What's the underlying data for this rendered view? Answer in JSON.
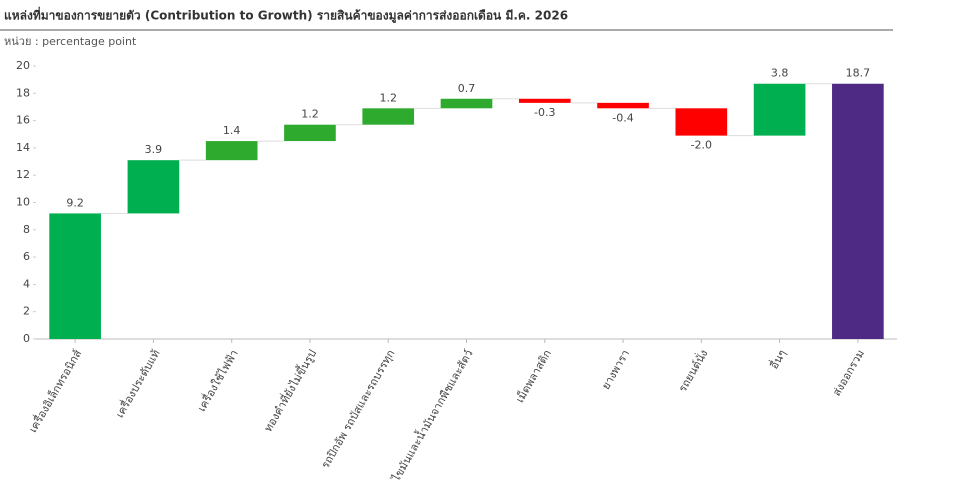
{
  "chart_data": {
    "type": "waterfall",
    "title": "แหล่งที่มาของการขยายตัว (Contribution to Growth) รายสินค้าของมูลค่าการส่งออกเดือน มี.ค. 2026",
    "subtitle": "หน่วย : percentage point",
    "categories": [
      "เครื่องอิเล็กทรอนิกส์",
      "เครื่องประดับแท้",
      "เครื่องใช้ไฟฟ้า",
      "ทองคำที่ยังไม่ขึ้นรูป",
      "รถปิกอัพ รถบัสและรถบรรทุก",
      "ไขมันและน้ำมันจากพืชและสัตว์",
      "เม็ดพลาสติก",
      "ยางพารา",
      "รถยนต์นั่ง",
      "อื่นๆ",
      "ส่งออกรวม"
    ],
    "values": [
      9.2,
      3.9,
      1.4,
      1.2,
      1.2,
      0.7,
      -0.3,
      -0.4,
      -2.0,
      3.8,
      18.7
    ],
    "value_labels": [
      "9.2",
      "3.9",
      "1.4",
      "1.2",
      "1.2",
      "0.7",
      "-0.3",
      "-0.4",
      "-2.0",
      "3.8",
      "18.7"
    ],
    "measure": [
      "relative",
      "relative",
      "relative",
      "relative",
      "relative",
      "relative",
      "relative",
      "relative",
      "relative",
      "relative",
      "total"
    ],
    "colors": [
      "#00b050",
      "#00b050",
      "#2eaa2e",
      "#2eaa2e",
      "#2eaa2e",
      "#2eaa2e",
      "#ff0000",
      "#ff0000",
      "#ff0000",
      "#00b050",
      "#4f2a84"
    ],
    "ylim": [
      0,
      20
    ],
    "yticks": [
      0,
      2,
      4,
      6,
      8,
      10,
      12,
      14,
      16,
      18,
      20
    ]
  }
}
